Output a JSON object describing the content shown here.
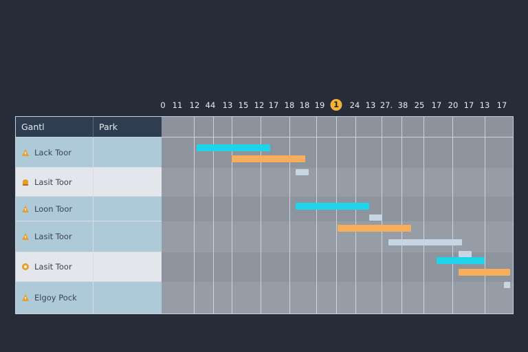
{
  "timeline": {
    "ticks": [
      "0",
      "11",
      "12",
      "44",
      "13",
      "15",
      "12",
      "17",
      "18",
      "18",
      "19",
      "1",
      "24",
      "13",
      "27.",
      "38",
      "25",
      "17",
      "20",
      "17",
      "13",
      "17"
    ],
    "highlight_index": 11
  },
  "header": {
    "col1_label": "Gantl",
    "col2_label": "Park"
  },
  "rows": [
    {
      "label": "Lack Toor",
      "icon": "warning-cone-icon"
    },
    {
      "label": "Lasit Toor",
      "icon": "lamp-icon"
    },
    {
      "label": "Loon Toor",
      "icon": "warning-cone-icon"
    },
    {
      "label": "Lasit Toor",
      "icon": "warning-cone-icon"
    },
    {
      "label": "Lasit Toor",
      "icon": "circle-badge-icon"
    },
    {
      "label": "Elgoy Pock",
      "icon": "warning-cone-icon"
    }
  ],
  "colors": {
    "cyan": "#1fd3ea",
    "orange": "#f6ad5c",
    "pale": "#c7d6e2",
    "icon": "#e99b2b"
  },
  "bars": [
    {
      "color": "cyan",
      "start": 1.1,
      "end": 3.4
    },
    {
      "color": "orange",
      "start": 2.2,
      "end": 4.5
    },
    {
      "color": "pale",
      "start": 4.2,
      "end": 4.6
    },
    {
      "color": "cyan",
      "start": 4.2,
      "end": 6.5
    },
    {
      "color": "pale",
      "start": 6.5,
      "end": 6.9
    },
    {
      "color": "orange",
      "start": 5.5,
      "end": 7.8
    },
    {
      "color": "pale",
      "start": 7.1,
      "end": 9.4
    },
    {
      "color": "pale",
      "start": 9.3,
      "end": 9.7
    },
    {
      "color": "cyan",
      "start": 8.6,
      "end": 10.1
    },
    {
      "color": "orange",
      "start": 9.3,
      "end": 10.9
    },
    {
      "color": "pale",
      "start": 10.7,
      "end": 10.9
    }
  ]
}
